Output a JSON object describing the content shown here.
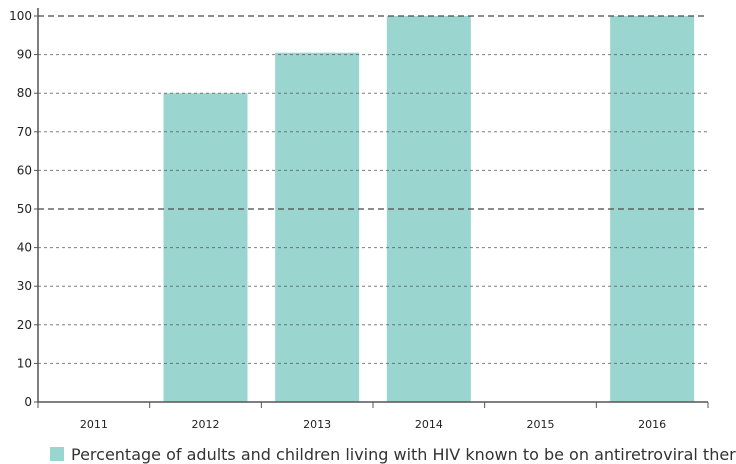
{
  "chart_data": {
    "type": "bar",
    "categories": [
      "2011",
      "2012",
      "2013",
      "2014",
      "2015",
      "2016"
    ],
    "series": [
      {
        "name": "Percentage of adults and children living with HIV known to be on antiretroviral thera",
        "values": [
          null,
          80,
          90.5,
          100,
          null,
          100
        ]
      }
    ],
    "ylim": [
      0,
      100
    ],
    "yticks": [
      0,
      10,
      20,
      30,
      40,
      50,
      60,
      70,
      80,
      90,
      100
    ],
    "grid": true,
    "legend": "bottom",
    "colors": {
      "bar": "#9ad6cf",
      "grid": "#555555",
      "axis": "#555555",
      "text": "#222222"
    }
  }
}
